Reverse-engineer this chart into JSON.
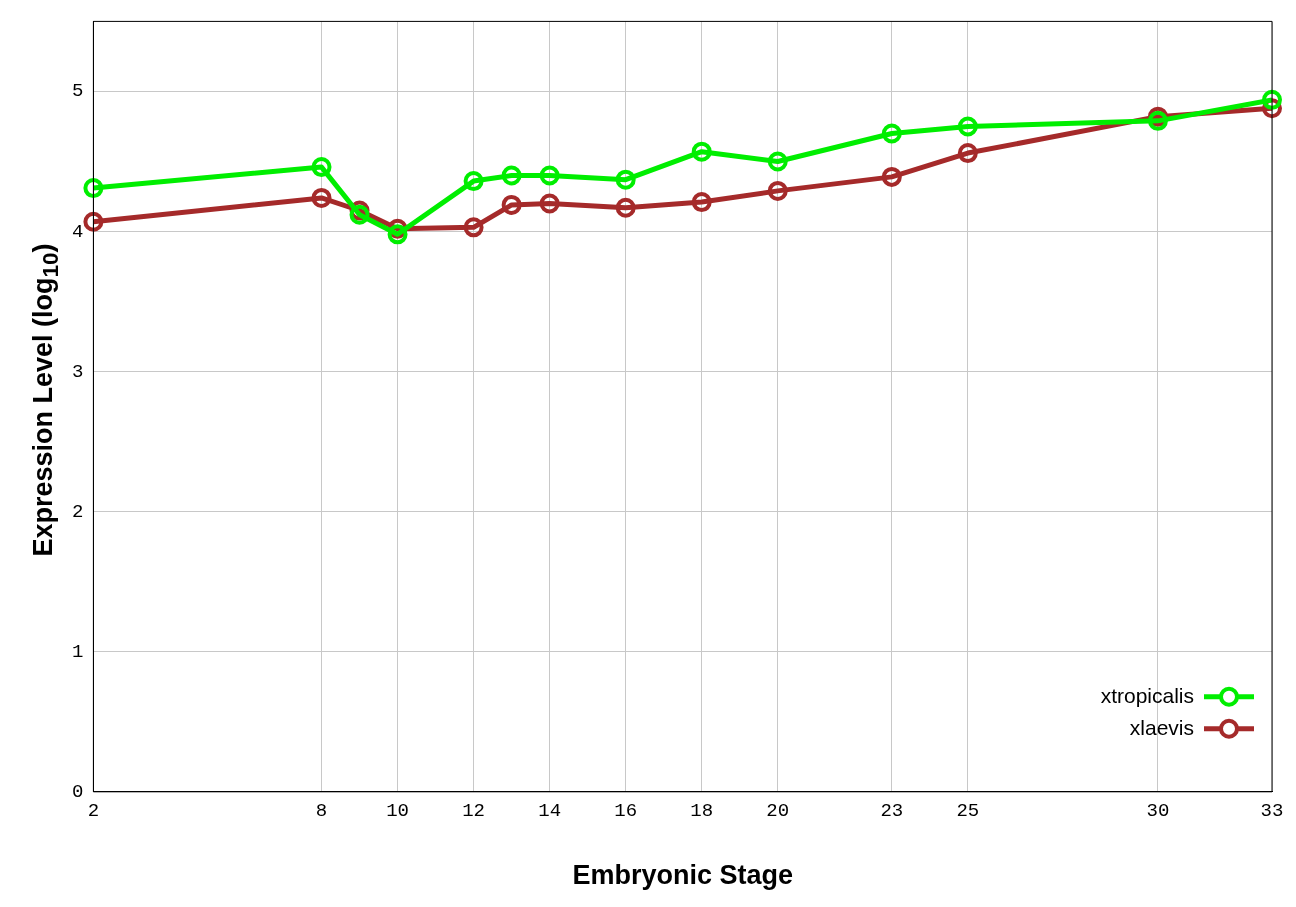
{
  "chart_data": {
    "type": "line",
    "xlabel": "Embryonic Stage",
    "ylabel": "Expression Level (log$_{10}$)",
    "x": [
      2,
      8,
      9,
      10,
      12,
      13,
      14,
      16,
      18,
      20,
      23,
      25,
      30,
      33
    ],
    "series": [
      {
        "name": "xtropicalis",
        "color": "#00ee00",
        "values": [
          4.31,
          4.46,
          4.12,
          3.98,
          4.36,
          4.4,
          4.4,
          4.37,
          4.57,
          4.5,
          4.7,
          4.75,
          4.79,
          4.94
        ]
      },
      {
        "name": "xlaevis",
        "color": "#a52a2a",
        "values": [
          4.07,
          4.24,
          4.15,
          4.02,
          4.03,
          4.19,
          4.2,
          4.17,
          4.21,
          4.29,
          4.39,
          4.56,
          4.82,
          4.88
        ]
      }
    ],
    "xlim": [
      2,
      33
    ],
    "xticks": [
      2,
      8,
      10,
      12,
      14,
      16,
      18,
      20,
      23,
      25,
      30,
      33
    ],
    "ylim": [
      0,
      5.5
    ],
    "yticks": [
      0,
      1,
      2,
      3,
      4,
      5
    ],
    "grid": true,
    "legend": "bottom right",
    "marker": "circle",
    "line_style": "solid"
  }
}
